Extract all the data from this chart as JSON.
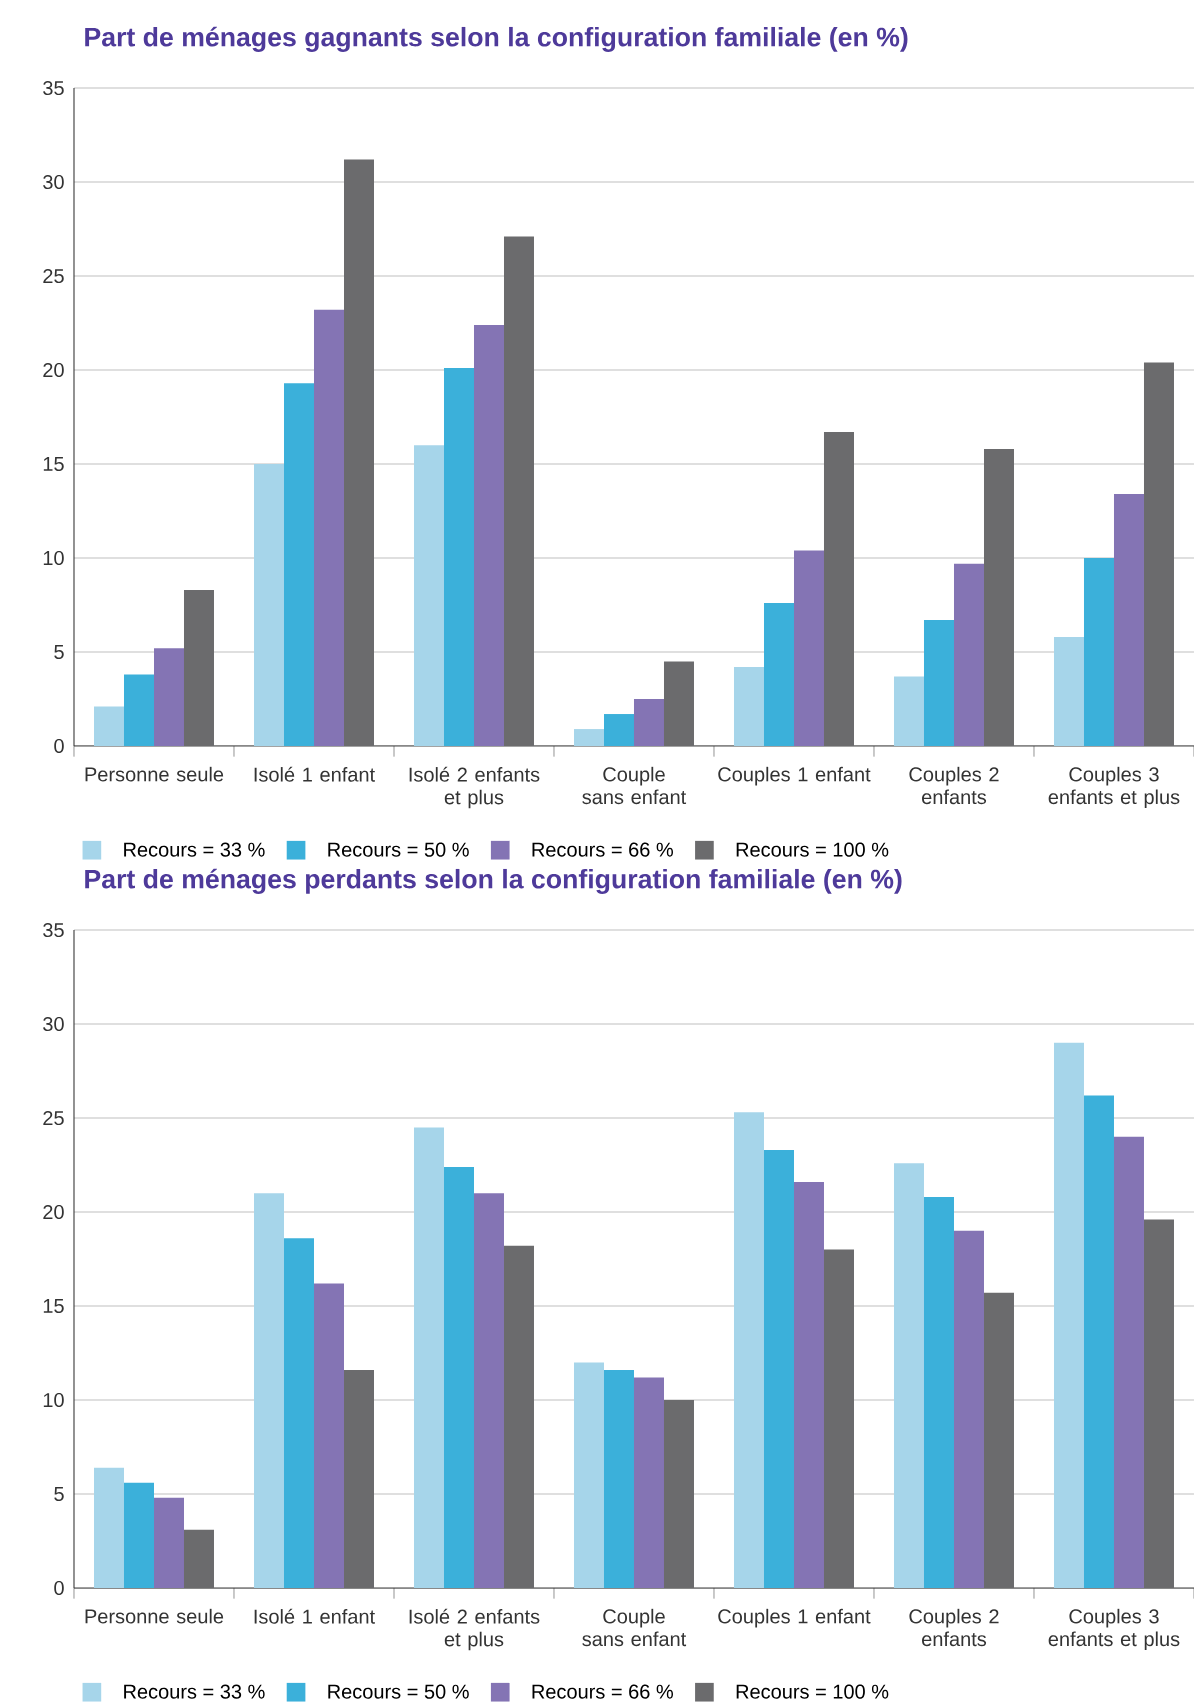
{
  "chart_data": [
    {
      "type": "bar",
      "title": "Part de ménages gagnants selon la configuration familiale (en %)",
      "categories": [
        "Personne seule",
        "Isolé 1 enfant",
        "Isolé 2 enfants et plus",
        "Couple sans enfant",
        "Couples 1 enfant",
        "Couples 2 enfants",
        "Couples 3 enfants et plus"
      ],
      "series": [
        {
          "name": "Recours = 33 %",
          "color": "#a6d5ea",
          "values": [
            2.1,
            15.0,
            16.0,
            0.9,
            4.2,
            3.7,
            5.8
          ]
        },
        {
          "name": "Recours = 50 %",
          "color": "#3bb0da",
          "values": [
            3.8,
            19.3,
            20.1,
            1.7,
            7.6,
            6.7,
            10.0
          ]
        },
        {
          "name": "Recours = 66 %",
          "color": "#8474b4",
          "values": [
            5.2,
            23.2,
            22.4,
            2.5,
            10.4,
            9.7,
            13.4
          ]
        },
        {
          "name": "Recours = 100 %",
          "color": "#6b6b6d",
          "values": [
            8.3,
            31.2,
            27.1,
            4.5,
            16.7,
            15.8,
            20.4
          ]
        }
      ],
      "ylim": [
        0,
        35
      ],
      "yticks": [
        0,
        5,
        10,
        15,
        20,
        25,
        30,
        35
      ],
      "grid": "y",
      "legend": "bottom left"
    },
    {
      "type": "bar",
      "title": "Part de ménages perdants selon la configuration familiale (en %)",
      "categories": [
        "Personne seule",
        "Isolé 1 enfant",
        "Isolé 2 enfants et plus",
        "Couple sans enfant",
        "Couples 1 enfant",
        "Couples 2 enfants",
        "Couples 3 enfants et plus"
      ],
      "series": [
        {
          "name": "Recours = 33 %",
          "color": "#a6d5ea",
          "values": [
            6.4,
            21.0,
            24.5,
            12.0,
            25.3,
            22.6,
            29.0
          ]
        },
        {
          "name": "Recours = 50 %",
          "color": "#3bb0da",
          "values": [
            5.6,
            18.6,
            22.4,
            11.6,
            23.3,
            20.8,
            26.2
          ]
        },
        {
          "name": "Recours = 66 %",
          "color": "#8474b4",
          "values": [
            4.8,
            16.2,
            21.0,
            11.2,
            21.6,
            19.0,
            24.0
          ]
        },
        {
          "name": "Recours = 100 %",
          "color": "#6b6b6d",
          "values": [
            3.1,
            11.6,
            18.2,
            10.0,
            18.0,
            15.7,
            19.6
          ]
        }
      ],
      "ylim": [
        0,
        35
      ],
      "yticks": [
        0,
        5,
        10,
        15,
        20,
        25,
        30,
        35
      ],
      "grid": "y",
      "legend": "bottom left"
    }
  ]
}
